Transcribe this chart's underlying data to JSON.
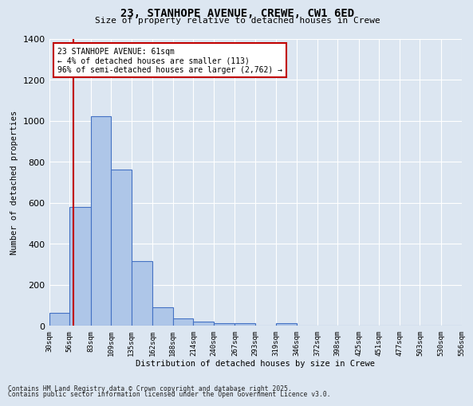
{
  "title1": "23, STANHOPE AVENUE, CREWE, CW1 6ED",
  "title2": "Size of property relative to detached houses in Crewe",
  "xlabel": "Distribution of detached houses by size in Crewe",
  "ylabel": "Number of detached properties",
  "bar_edges": [
    30,
    56,
    83,
    109,
    135,
    162,
    188,
    214,
    240,
    267,
    293,
    319,
    346,
    372,
    398,
    425,
    451,
    477,
    503,
    530,
    556
  ],
  "bar_heights": [
    65,
    580,
    1020,
    760,
    315,
    90,
    38,
    22,
    14,
    13,
    0,
    13,
    0,
    0,
    0,
    0,
    0,
    0,
    0,
    0
  ],
  "bar_color": "#aec6e8",
  "bar_edge_color": "#4472c4",
  "vline_x": 61,
  "vline_color": "#c00000",
  "ylim": [
    0,
    1400
  ],
  "yticks": [
    0,
    200,
    400,
    600,
    800,
    1000,
    1200,
    1400
  ],
  "bg_color": "#dce6f1",
  "grid_color": "#ffffff",
  "annotation_text": "23 STANHOPE AVENUE: 61sqm\n← 4% of detached houses are smaller (113)\n96% of semi-detached houses are larger (2,762) →",
  "annotation_box_color": "#ffffff",
  "annotation_box_edge": "#c00000",
  "footer_line1": "Contains HM Land Registry data © Crown copyright and database right 2025.",
  "footer_line2": "Contains public sector information licensed under the Open Government Licence v3.0.",
  "tick_labels": [
    "30sqm",
    "56sqm",
    "83sqm",
    "109sqm",
    "135sqm",
    "162sqm",
    "188sqm",
    "214sqm",
    "240sqm",
    "267sqm",
    "293sqm",
    "319sqm",
    "346sqm",
    "372sqm",
    "398sqm",
    "425sqm",
    "451sqm",
    "477sqm",
    "503sqm",
    "530sqm",
    "556sqm"
  ]
}
